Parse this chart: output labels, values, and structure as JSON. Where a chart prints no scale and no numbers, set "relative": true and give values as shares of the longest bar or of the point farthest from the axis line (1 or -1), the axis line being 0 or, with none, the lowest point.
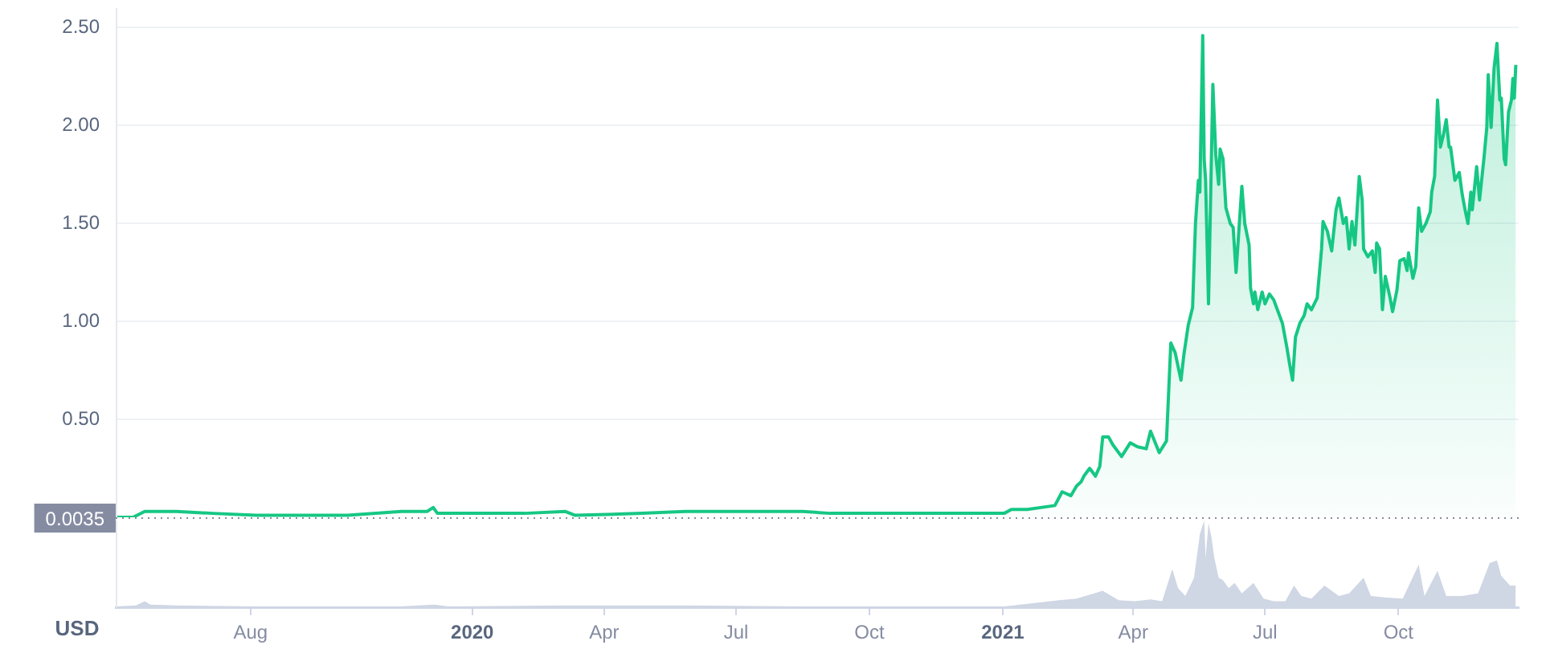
{
  "chart_data": [
    {
      "type": "area",
      "color": "#16c784",
      "x": [
        "2019-04-30",
        "2019-05-12",
        "2019-05-20",
        "2019-06-11",
        "2019-07-06",
        "2019-08-05",
        "2019-09-04",
        "2019-10-07",
        "2019-11-13",
        "2019-12-01",
        "2019-12-05",
        "2019-12-08",
        "2019-12-30",
        "2020-02-06",
        "2020-03-05",
        "2020-03-12",
        "2020-04-27",
        "2020-05-27",
        "2020-08-16",
        "2020-09-04",
        "2020-10-30",
        "2021-01-02",
        "2021-01-07",
        "2021-01-18",
        "2021-02-06",
        "2021-02-11",
        "2021-02-17",
        "2021-02-21",
        "2021-02-24",
        "2021-02-26",
        "2021-03-02",
        "2021-03-06",
        "2021-03-09",
        "2021-03-11",
        "2021-03-15",
        "2021-03-18",
        "2021-03-24",
        "2021-03-30",
        "2021-04-04",
        "2021-04-10",
        "2021-04-13",
        "2021-04-19",
        "2021-04-24",
        "2021-04-27",
        "2021-04-30",
        "2021-05-04",
        "2021-05-06",
        "2021-05-09",
        "2021-05-12",
        "2021-05-14",
        "2021-05-16",
        "2021-05-17",
        "2021-05-19",
        "2021-05-20",
        "2021-05-21",
        "2021-05-23",
        "2021-05-26",
        "2021-05-28",
        "2021-05-30",
        "2021-05-31",
        "2021-06-02",
        "2021-06-04",
        "2021-06-07",
        "2021-06-09",
        "2021-06-11",
        "2021-06-13",
        "2021-06-15",
        "2021-06-17",
        "2021-06-20",
        "2021-06-21",
        "2021-06-23",
        "2021-06-24",
        "2021-06-26",
        "2021-06-29",
        "2021-07-01",
        "2021-07-04",
        "2021-07-07",
        "2021-07-10",
        "2021-07-13",
        "2021-07-16",
        "2021-07-18",
        "2021-07-20",
        "2021-07-22",
        "2021-07-25",
        "2021-07-28",
        "2021-07-30",
        "2021-08-02",
        "2021-08-06",
        "2021-08-09",
        "2021-08-10",
        "2021-08-13",
        "2021-08-16",
        "2021-08-19",
        "2021-08-21",
        "2021-08-24",
        "2021-08-26",
        "2021-08-28",
        "2021-08-30",
        "2021-09-01",
        "2021-09-04",
        "2021-09-06",
        "2021-09-07",
        "2021-09-10",
        "2021-09-13",
        "2021-09-15",
        "2021-09-16",
        "2021-09-18",
        "2021-09-20",
        "2021-09-22",
        "2021-09-25",
        "2021-09-27",
        "2021-09-30",
        "2021-10-02",
        "2021-10-05",
        "2021-10-07",
        "2021-10-08",
        "2021-10-11",
        "2021-10-13",
        "2021-10-15",
        "2021-10-17",
        "2021-10-20",
        "2021-10-23",
        "2021-10-24",
        "2021-10-26",
        "2021-10-28",
        "2021-10-30",
        "2021-11-01",
        "2021-11-03",
        "2021-11-05",
        "2021-11-06",
        "2021-11-09",
        "2021-11-12",
        "2021-11-14",
        "2021-11-16",
        "2021-11-18",
        "2021-11-20",
        "2021-11-21",
        "2021-11-24",
        "2021-11-26",
        "2021-11-29",
        "2021-12-01",
        "2021-12-02",
        "2021-12-04",
        "2021-12-06",
        "2021-12-08",
        "2021-12-10",
        "2021-12-11",
        "2021-12-13",
        "2021-12-14",
        "2021-12-16",
        "2021-12-18",
        "2021-12-19",
        "2021-12-20",
        "2021-12-21"
      ],
      "values": [
        0,
        0,
        0.03,
        0.03,
        0.02,
        0.01,
        0.01,
        0.01,
        0.03,
        0.03,
        0.05,
        0.02,
        0.02,
        0.02,
        0.03,
        0.01,
        0.02,
        0.03,
        0.03,
        0.02,
        0.02,
        0.02,
        0.04,
        0.04,
        0.06,
        0.13,
        0.11,
        0.16,
        0.18,
        0.21,
        0.25,
        0.21,
        0.26,
        0.41,
        0.41,
        0.37,
        0.31,
        0.38,
        0.36,
        0.35,
        0.44,
        0.33,
        0.39,
        0.89,
        0.84,
        0.7,
        0.83,
        0.98,
        1.07,
        1.5,
        1.72,
        1.66,
        2.46,
        1.83,
        1.72,
        1.09,
        2.21,
        1.85,
        1.7,
        1.88,
        1.83,
        1.58,
        1.5,
        1.48,
        1.25,
        1.47,
        1.69,
        1.5,
        1.39,
        1.17,
        1.09,
        1.15,
        1.06,
        1.15,
        1.09,
        1.14,
        1.11,
        1.05,
        0.99,
        0.87,
        0.78,
        0.7,
        0.92,
        0.99,
        1.03,
        1.09,
        1.06,
        1.12,
        1.37,
        1.51,
        1.46,
        1.36,
        1.57,
        1.63,
        1.5,
        1.53,
        1.37,
        1.51,
        1.39,
        1.74,
        1.62,
        1.37,
        1.33,
        1.36,
        1.25,
        1.4,
        1.37,
        1.06,
        1.23,
        1.13,
        1.05,
        1.16,
        1.31,
        1.32,
        1.26,
        1.35,
        1.22,
        1.28,
        1.58,
        1.46,
        1.5,
        1.56,
        1.66,
        1.74,
        2.13,
        1.89,
        1.95,
        2.03,
        1.89,
        1.89,
        1.72,
        1.76,
        1.65,
        1.57,
        1.5,
        1.66,
        1.57,
        1.79,
        1.62,
        1.83,
        1.99,
        2.26,
        1.99,
        2.29,
        2.42,
        2.13,
        2.14,
        1.83,
        1.8,
        2.07,
        2.13,
        2.24,
        2.14,
        2.31
      ],
      "xlim": [
        "2019-04-30",
        "2021-12-23"
      ],
      "ylim": [
        0,
        2.6
      ],
      "yticks": [
        {
          "value": 0.5,
          "label": "0.50"
        },
        {
          "value": 1,
          "label": "1.00"
        },
        {
          "value": 1.5,
          "label": "1.50"
        },
        {
          "value": 2,
          "label": "2.00"
        },
        {
          "value": 2.5,
          "label": "2.50"
        }
      ],
      "grid": "y",
      "tick_labels": "y",
      "ref_lines": [
        {
          "axis": "y",
          "value": 0.0035,
          "label": "0.0035",
          "color": "#858ca2",
          "line_style": "dotted"
        }
      ]
    },
    {
      "type": "area",
      "relative": true,
      "color": "#cfd6e4",
      "x": [
        "2019-04-30",
        "2019-05-14",
        "2019-05-20",
        "2019-05-24",
        "2019-06-11",
        "2019-08-05",
        "2019-11-13",
        "2019-12-06",
        "2019-12-16",
        "2020-03-05",
        "2020-05-27",
        "2020-08-16",
        "2020-10-30",
        "2021-01-02",
        "2021-02-09",
        "2021-02-21",
        "2021-03-11",
        "2021-03-22",
        "2021-04-02",
        "2021-04-13",
        "2021-04-21",
        "2021-04-28",
        "2021-05-02",
        "2021-05-07",
        "2021-05-13",
        "2021-05-17",
        "2021-05-20",
        "2021-05-21",
        "2021-05-23",
        "2021-05-25",
        "2021-05-27",
        "2021-05-30",
        "2021-06-02",
        "2021-06-06",
        "2021-06-10",
        "2021-06-15",
        "2021-06-23",
        "2021-06-30",
        "2021-07-07",
        "2021-07-15",
        "2021-07-21",
        "2021-07-26",
        "2021-08-02",
        "2021-08-11",
        "2021-08-21",
        "2021-08-28",
        "2021-09-07",
        "2021-09-12",
        "2021-09-23",
        "2021-10-04",
        "2021-10-15",
        "2021-10-19",
        "2021-10-28",
        "2021-11-03",
        "2021-11-14",
        "2021-11-25",
        "2021-12-03",
        "2021-12-08",
        "2021-12-11",
        "2021-12-17",
        "2021-12-21"
      ],
      "values": [
        0.01,
        0.02,
        0.07,
        0.03,
        0.02,
        0.01,
        0.01,
        0.03,
        0.01,
        0.02,
        0.02,
        0.01,
        0.01,
        0.01,
        0.08,
        0.1,
        0.19,
        0.08,
        0.07,
        0.09,
        0.07,
        0.44,
        0.22,
        0.13,
        0.34,
        0.84,
        1,
        0.57,
        0.97,
        0.81,
        0.57,
        0.34,
        0.31,
        0.22,
        0.28,
        0.16,
        0.28,
        0.1,
        0.07,
        0.07,
        0.25,
        0.13,
        0.1,
        0.25,
        0.13,
        0.16,
        0.34,
        0.13,
        0.11,
        0.1,
        0.49,
        0.13,
        0.42,
        0.13,
        0.13,
        0.16,
        0.51,
        0.54,
        0.36,
        0.25,
        0.25
      ],
      "xlim": [
        "2019-04-30",
        "2021-12-23"
      ],
      "xticks": [
        {
          "value": "2019-08-01",
          "label": "Aug"
        },
        {
          "value": "2020-01-01",
          "label": "2020"
        },
        {
          "value": "2020-04-01",
          "label": "Apr"
        },
        {
          "value": "2020-07-01",
          "label": "Jul"
        },
        {
          "value": "2020-10-01",
          "label": "Oct"
        },
        {
          "value": "2021-01-01",
          "label": "2021"
        },
        {
          "value": "2021-04-01",
          "label": "Apr"
        },
        {
          "value": "2021-07-01",
          "label": "Jul"
        },
        {
          "value": "2021-10-01",
          "label": "Oct"
        }
      ],
      "tick_labels": "x",
      "annotations": [
        "USD"
      ]
    }
  ]
}
